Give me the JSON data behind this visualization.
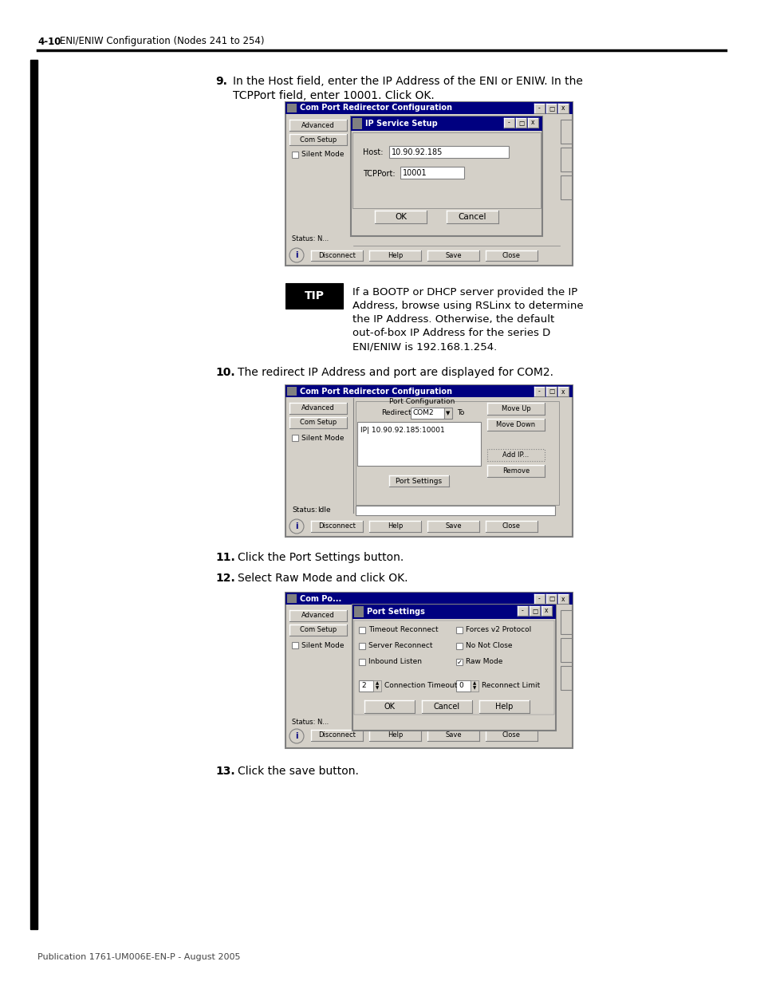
{
  "page_bg": "#ffffff",
  "header_bold": "4-10",
  "header_normal": "    ENI/ENIW Configuration (Nodes 241 to 254)",
  "footer_text": "Publication 1761-UM006E-EN-P - August 2005",
  "step9_num": "9.",
  "step9_line1": "In the Host field, enter the IP Address of the ENI or ENIW. In the",
  "step9_line2": "TCPPort field, enter 10001. Click OK.",
  "tip_label": "TIP",
  "tip_text_line1": "If a BOOTP or DHCP server provided the IP",
  "tip_text_line2": "Address, browse using RSLinx to determine",
  "tip_text_line3": "the IP Address. Otherwise, the default",
  "tip_text_line4": "out-of-box IP Address for the series D",
  "tip_text_line5": "ENI/ENIW is 192.168.1.254.",
  "step10_num": "10.",
  "step10_text": "The redirect IP Address and port are displayed for COM2.",
  "step11_num": "11.",
  "step11_text": "Click the Port Settings button.",
  "step12_num": "12.",
  "step12_text": "Select Raw Mode and click OK.",
  "step13_num": "13.",
  "step13_text": "Click the save button.",
  "gray_bg": "#c0c0c0",
  "dark_gray": "#808080",
  "navy": "#000080",
  "white": "#ffffff",
  "black": "#000000",
  "light_gray": "#d4d0c8",
  "mid_gray": "#a0a0a0"
}
